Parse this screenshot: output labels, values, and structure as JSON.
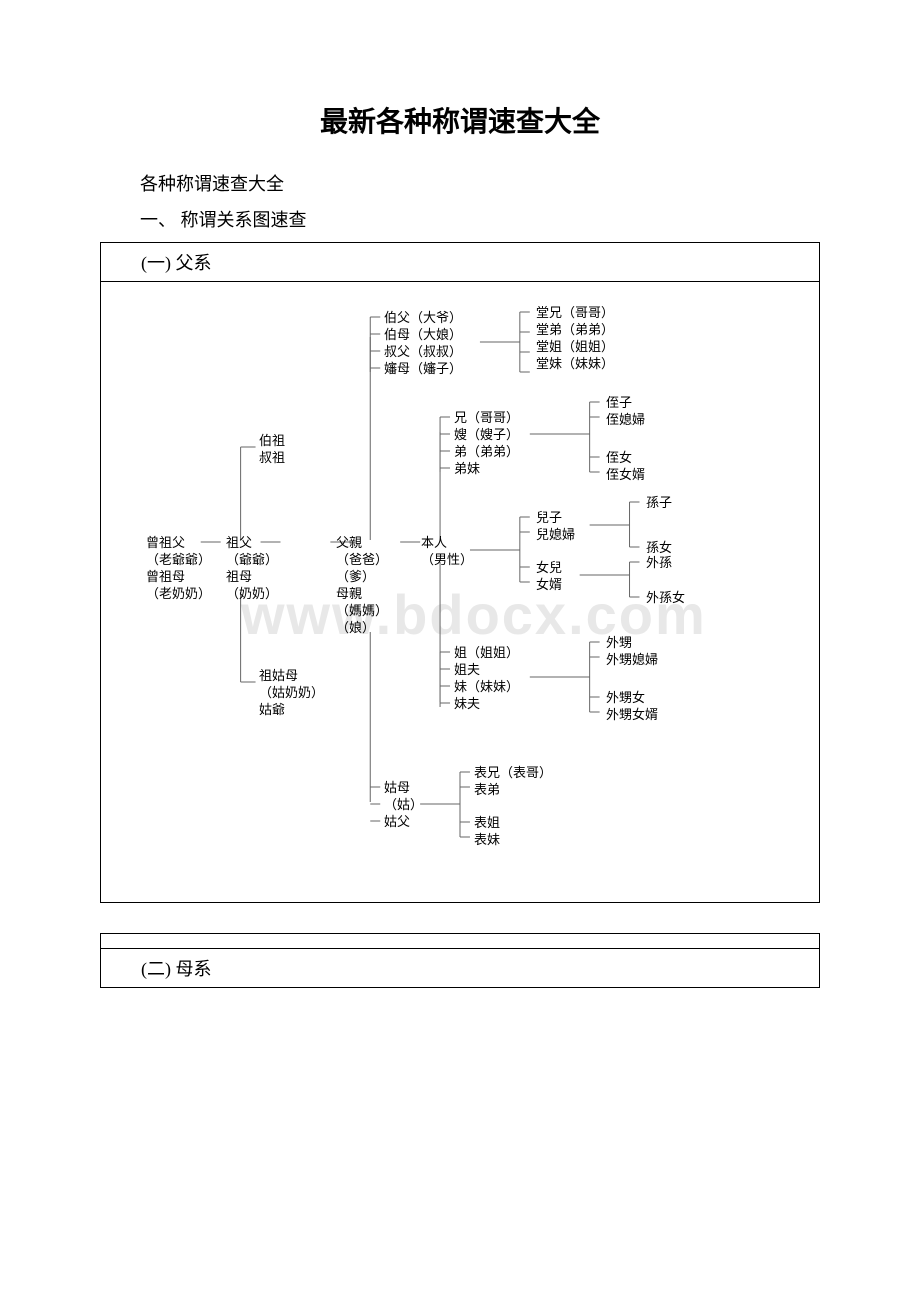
{
  "title": "最新各种称谓速查大全",
  "subtitle1": "各种称谓速查大全",
  "subtitle2": "一、 称谓关系图速查",
  "section1_header": "(一) 父系",
  "section2_header": "(二) 母系",
  "watermark": "www.bdocx.com",
  "line_color": "#666666",
  "nodes": {
    "bofu": "伯父（大爷）\n伯母（大娘）\n叔父（叔叔）\n嬸母（嬸子）",
    "tangxiong": "堂兄（哥哥）\n堂弟（弟弟）\n堂姐（姐姐）\n堂妹（妹妹）",
    "bozushu": "伯祖\n叔祖",
    "xiong": "兄（哥哥）\n嫂（嫂子）\n弟（弟弟）\n弟妹",
    "zhizi": "侄子\n侄媳婦",
    "zhinv": "侄女\n侄女婿",
    "zengzufu": "曾祖父\n（老爺爺）\n曾祖母\n（老奶奶）",
    "zufu": "祖父\n（爺爺）\n祖母\n（奶奶）",
    "fuqin": "父親\n（爸爸）\n（爹）\n母親\n（媽媽）\n（娘）",
    "benren": "本人\n（男性）",
    "erzi": "兒子\n兒媳婦",
    "sunzi": "孫子",
    "sunnv": "孫女",
    "nver": "女兒\n女婿",
    "waisun": "外孫",
    "waisunnv": "外孫女",
    "zugumu": "祖姑母\n（姑奶奶）\n姑爺",
    "jie": "姐（姐姐）\n姐夫\n妹（妹妹）\n妹夫",
    "waisheng": "外甥\n外甥媳婦",
    "waishengnv": "外甥女\n外甥女婿",
    "gumu": "姑母\n（姑）\n姑父",
    "biaoxiong": "表兄（表哥）\n表弟",
    "biaojie": "表姐\n表妹"
  }
}
